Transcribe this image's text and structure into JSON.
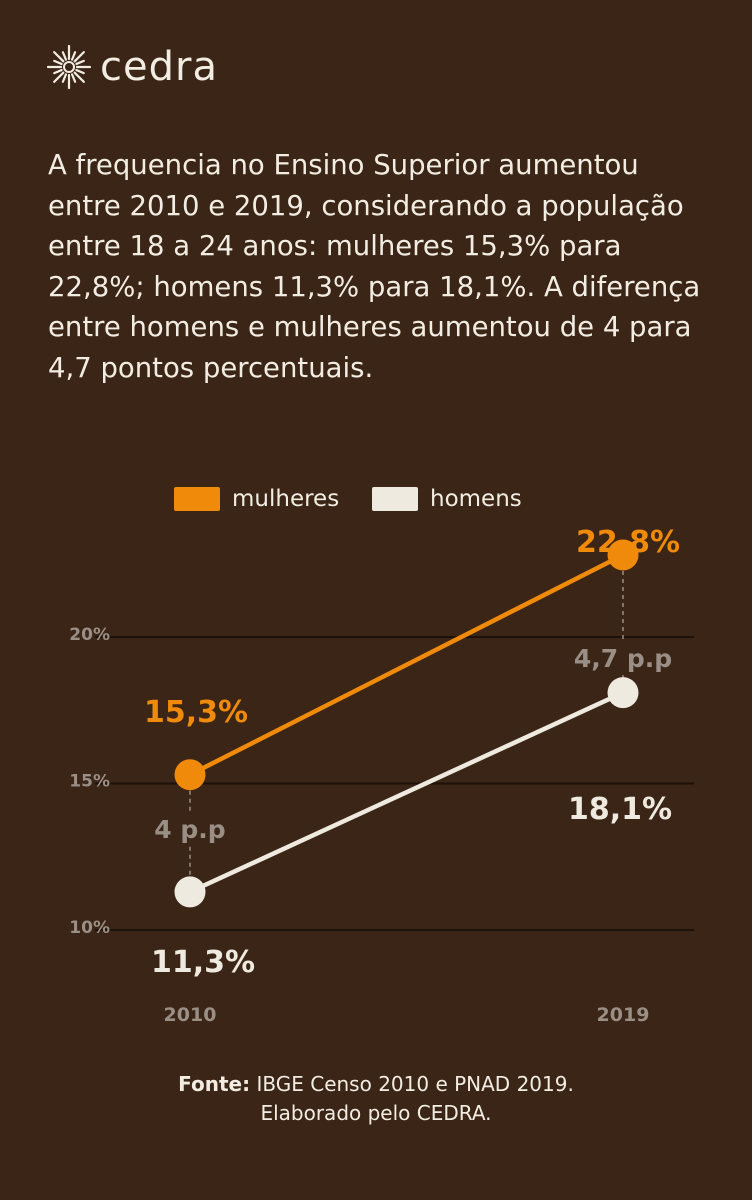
{
  "brand": {
    "name": "cedra"
  },
  "intro_text": "A frequencia no Ensino Superior aumentou entre 2010 e 2019, considerando a população entre 18 a 24 anos: mulheres 15,3% para 22,8%; homens 11,3% para 18,1%. A diferença entre homens e mulheres aumentou de 4 para 4,7 pontos percentuais.",
  "colors": {
    "background": "#3b2516",
    "mulheres": "#ef8a0b",
    "homens": "#efeadf",
    "muted": "#9a8f86",
    "grid": "#1d120a"
  },
  "chart_data": {
    "type": "line",
    "categories": [
      "2010",
      "2019"
    ],
    "series": [
      {
        "name": "mulheres",
        "values": [
          15.3,
          22.8
        ],
        "labels": [
          "15,3%",
          "22,8%"
        ]
      },
      {
        "name": "homens",
        "values": [
          11.3,
          18.1
        ],
        "labels": [
          "11,3%",
          "18,1%"
        ]
      }
    ],
    "gap_labels": [
      "4 p.p",
      "4,7 p.p"
    ],
    "yticks": [
      20,
      15,
      10
    ],
    "ytick_labels": [
      "20%",
      "15%",
      "10%"
    ],
    "ylim": [
      10,
      20
    ],
    "grid": true,
    "legend": "top-center"
  },
  "source": {
    "label": "Fonte:",
    "text": "IBGE Censo 2010 e PNAD 2019.",
    "line2": "Elaborado pelo CEDRA."
  }
}
